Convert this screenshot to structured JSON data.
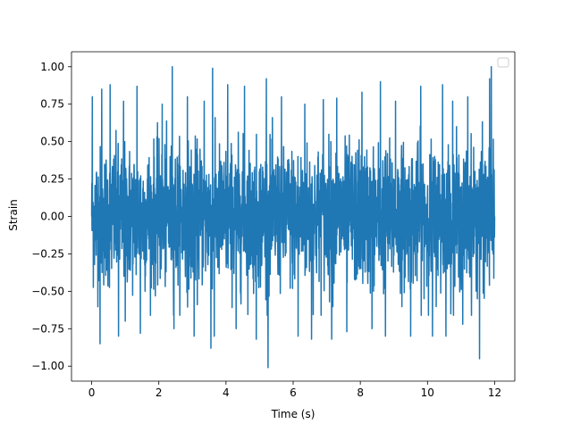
{
  "chart_data": {
    "type": "line",
    "title": "",
    "xlabel": "Time (s)",
    "ylabel": "Strain",
    "xlim": [
      -0.6,
      12.6
    ],
    "ylim": [
      -1.1,
      1.1
    ],
    "xticks": [
      0,
      2,
      4,
      6,
      8,
      10,
      12
    ],
    "xtick_labels": [
      "0",
      "2",
      "4",
      "6",
      "8",
      "10",
      "12"
    ],
    "yticks": [
      -1.0,
      -0.75,
      -0.5,
      -0.25,
      0.0,
      0.25,
      0.5,
      0.75,
      1.0
    ],
    "ytick_labels": [
      "−1.00",
      "−0.75",
      "−0.50",
      "−0.25",
      "0.00",
      "0.25",
      "0.50",
      "0.75",
      "1.00"
    ],
    "grid": false,
    "legend": {
      "placement": "top-right",
      "entries": []
    },
    "series": [
      {
        "color": "#1f77b4",
        "description": "dense noise signal from t=0 to t=12 s, amplitude mostly within ±0.5 with peaks reaching about ±1.0",
        "x": [
          0.0,
          0.02,
          0.25,
          0.3,
          0.55,
          0.8,
          0.95,
          1.0,
          1.35,
          1.45,
          2.1,
          2.4,
          2.45,
          2.85,
          3.05,
          3.35,
          3.55,
          3.6,
          3.65,
          4.05,
          4.3,
          4.55,
          4.9,
          5.2,
          5.25,
          5.65,
          6.15,
          6.35,
          6.55,
          6.9,
          7.15,
          7.3,
          7.6,
          8.05,
          8.35,
          8.6,
          8.75,
          9.05,
          9.5,
          9.8,
          10.15,
          10.45,
          10.55,
          10.75,
          11.05,
          11.2,
          11.55,
          11.85,
          11.9,
          12.0
        ],
        "y": [
          0.0,
          0.8,
          -0.85,
          0.85,
          0.88,
          -0.8,
          0.77,
          -0.7,
          0.87,
          -0.78,
          0.75,
          1.0,
          -0.75,
          0.8,
          -0.8,
          0.77,
          -0.88,
          0.99,
          -0.8,
          0.88,
          -0.75,
          0.87,
          -0.82,
          0.92,
          -1.01,
          0.8,
          -0.8,
          0.75,
          -0.82,
          0.78,
          -0.82,
          0.79,
          -0.77,
          0.83,
          -0.75,
          0.9,
          -0.8,
          0.77,
          -0.8,
          0.87,
          -0.8,
          0.88,
          -0.8,
          0.77,
          -0.72,
          0.8,
          -0.95,
          0.92,
          1.0,
          0.0
        ]
      }
    ]
  }
}
